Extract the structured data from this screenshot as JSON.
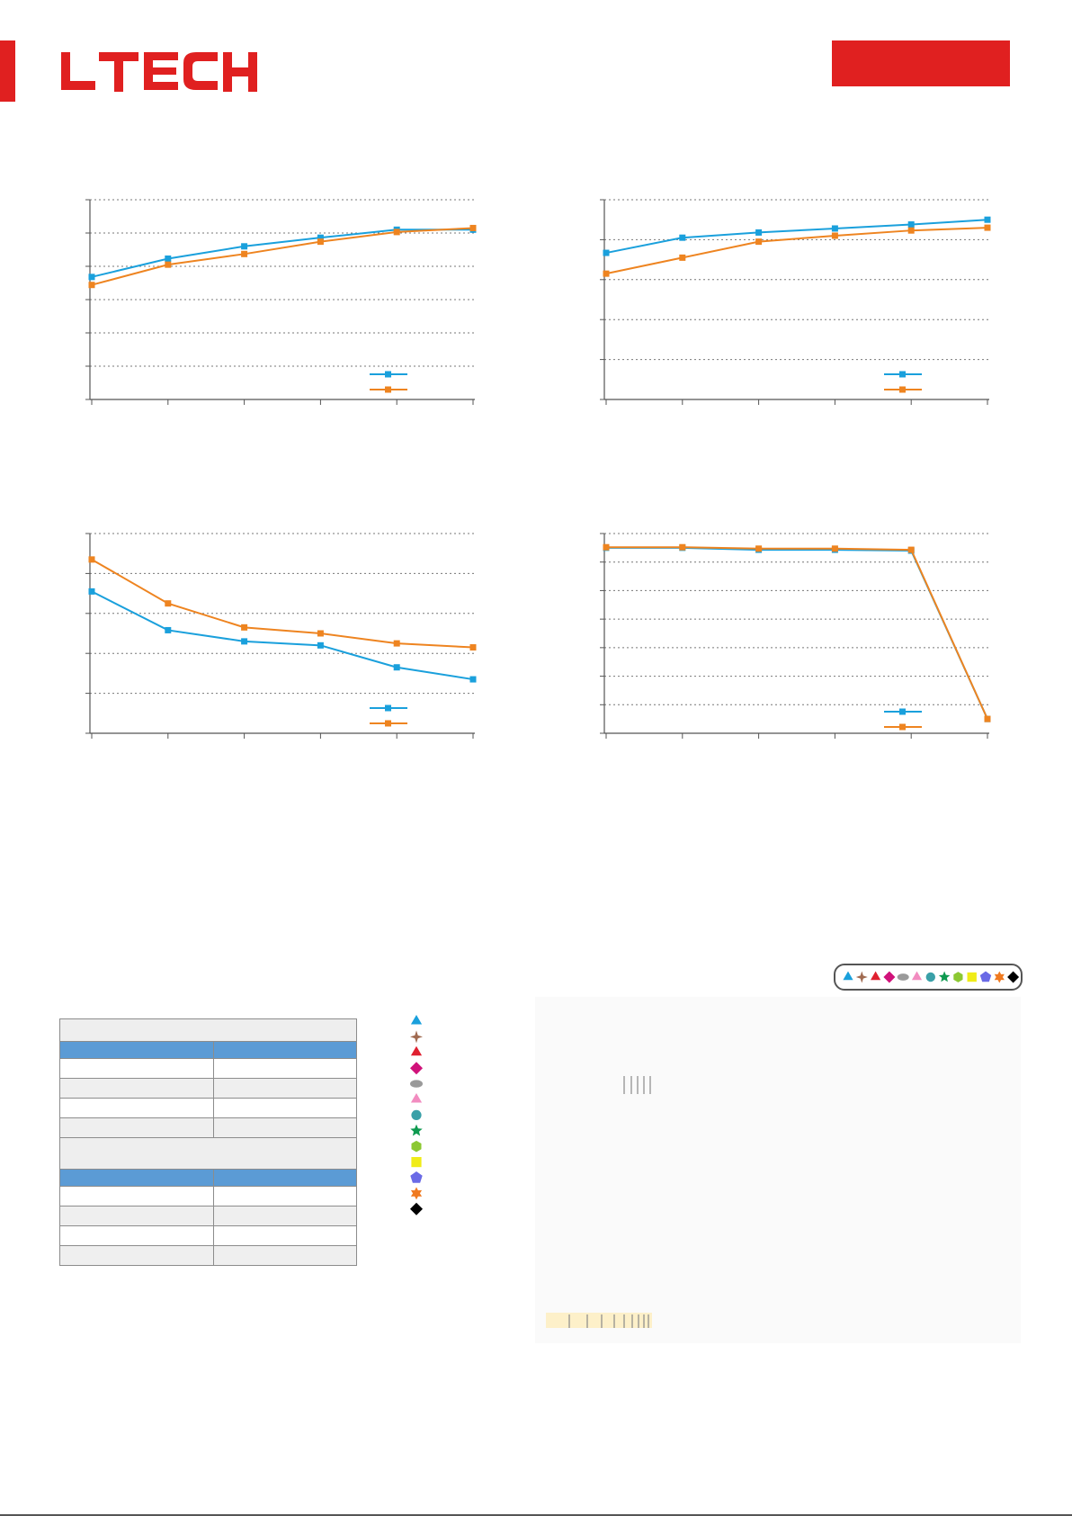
{
  "brand": {
    "logo_text": "LTECH",
    "accent_color": "#e02020"
  },
  "series_colors": {
    "series_a": "#1aa0dc",
    "series_b": "#ee8420"
  },
  "chart_data": [
    {
      "type": "line",
      "x": [
        0,
        1,
        2,
        3,
        4,
        5
      ],
      "ylim": [
        0,
        6
      ],
      "series": [
        {
          "values": [
            3.68,
            4.23,
            4.6,
            4.86,
            5.1,
            5.1
          ]
        },
        {
          "values": [
            3.44,
            4.05,
            4.37,
            4.74,
            5.03,
            5.15
          ]
        }
      ]
    },
    {
      "type": "line",
      "x": [
        0,
        1,
        2,
        3,
        4,
        5
      ],
      "ylim": [
        0,
        5
      ],
      "series": [
        {
          "values": [
            3.67,
            4.05,
            4.18,
            4.28,
            4.38,
            4.5
          ]
        },
        {
          "values": [
            3.15,
            3.55,
            3.95,
            4.1,
            4.23,
            4.3
          ]
        }
      ]
    },
    {
      "type": "line",
      "x": [
        0,
        1,
        2,
        3,
        4,
        5
      ],
      "ylim": [
        0,
        5
      ],
      "series": [
        {
          "values": [
            3.55,
            2.58,
            2.3,
            2.2,
            1.65,
            1.35
          ]
        },
        {
          "values": [
            4.35,
            3.25,
            2.65,
            2.5,
            2.25,
            2.15
          ]
        }
      ]
    },
    {
      "type": "line",
      "x": [
        0,
        1,
        2,
        3,
        4,
        5
      ],
      "ylim": [
        0,
        7
      ],
      "series": [
        {
          "values": [
            6.5,
            6.5,
            6.43,
            6.43,
            6.4,
            0.5
          ]
        },
        {
          "values": [
            6.52,
            6.52,
            6.47,
            6.47,
            6.43,
            0.5
          ]
        }
      ]
    }
  ],
  "icon_legend": {
    "items": [
      {
        "icon": "triangle-blue-icon",
        "color": "#1aa0dc"
      },
      {
        "icon": "star4-brown-icon",
        "color": "#a06a50"
      },
      {
        "icon": "triangle-red-icon",
        "color": "#e02030"
      },
      {
        "icon": "diamond-magenta-icon",
        "color": "#d0127a"
      },
      {
        "icon": "ellipse-gray-icon",
        "color": "#9a9a9a"
      },
      {
        "icon": "triangle-pink-icon",
        "color": "#f28cc0"
      },
      {
        "icon": "circle-teal-icon",
        "color": "#3aa0a8"
      },
      {
        "icon": "star5-green-icon",
        "color": "#0e9a50"
      },
      {
        "icon": "hexagon-lime-icon",
        "color": "#8cc832"
      },
      {
        "icon": "square-yellow-icon",
        "color": "#f0ec18"
      },
      {
        "icon": "pentagon-violet-icon",
        "color": "#6a6ae6"
      },
      {
        "icon": "star6-orange-icon",
        "color": "#f07a20"
      },
      {
        "icon": "diamond-black-icon",
        "color": "#000000"
      }
    ]
  }
}
